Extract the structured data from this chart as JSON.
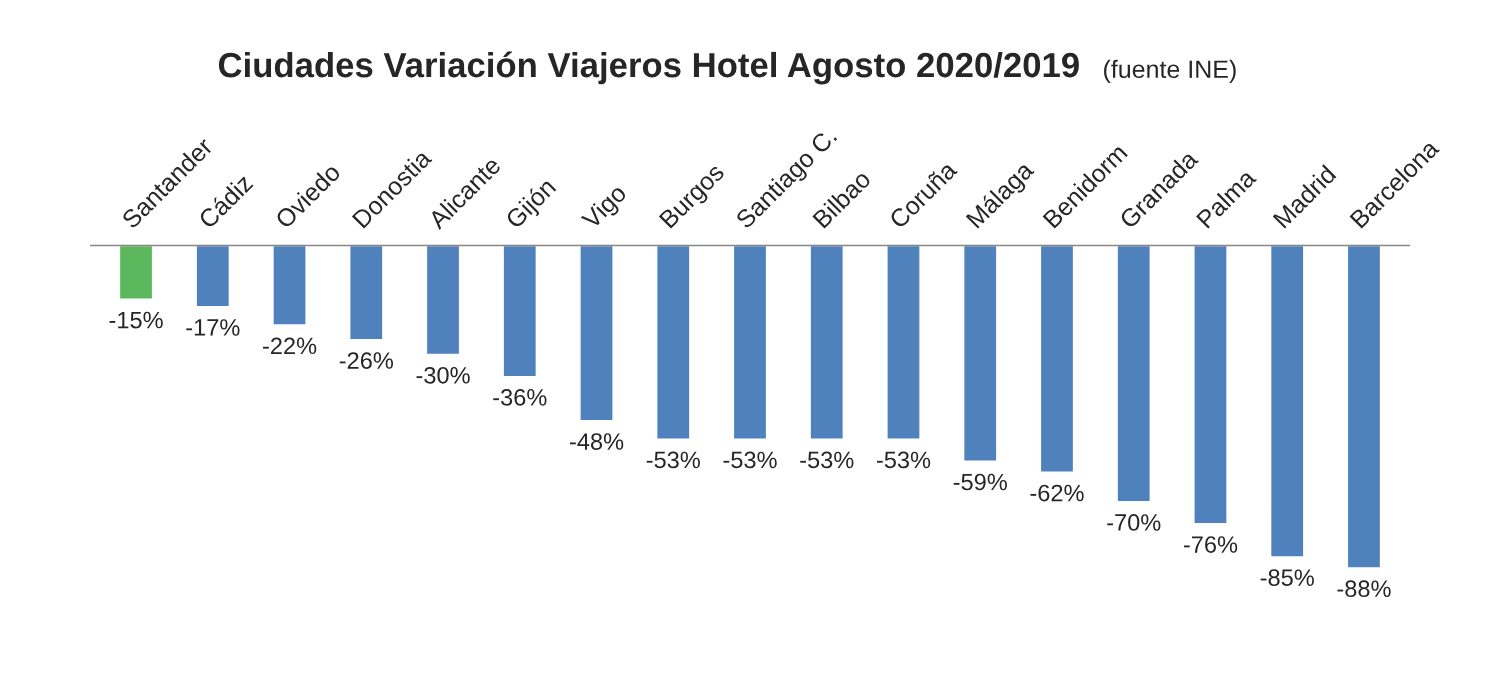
{
  "chart_data": {
    "type": "bar",
    "title": "Ciudades Variación Viajeros Hotel Agosto 2020/2019",
    "subtitle": "(fuente INE)",
    "categories": [
      "Santander",
      "Cádiz",
      "Oviedo",
      "Donostia",
      "Alicante",
      "Gijón",
      "Vigo",
      "Burgos",
      "Santiago C.",
      "Bilbao",
      "Coruña",
      "Málaga",
      "Benidorm",
      "Granada",
      "Palma",
      "Madrid",
      "Barcelona"
    ],
    "values": [
      -15,
      -17,
      -22,
      -26,
      -30,
      -36,
      -48,
      -53,
      -53,
      -53,
      -53,
      -59,
      -62,
      -70,
      -76,
      -85,
      -88
    ],
    "value_labels": [
      "-15%",
      "-17%",
      "-22%",
      "-26%",
      "-30%",
      "-36%",
      "-48%",
      "-53%",
      "-53%",
      "-53%",
      "-53%",
      "-59%",
      "-62%",
      "-70%",
      "-76%",
      "-85%",
      "-88%"
    ],
    "colors": [
      "#5cb85c",
      "#4f81bd",
      "#4f81bd",
      "#4f81bd",
      "#4f81bd",
      "#4f81bd",
      "#4f81bd",
      "#4f81bd",
      "#4f81bd",
      "#4f81bd",
      "#4f81bd",
      "#4f81bd",
      "#4f81bd",
      "#4f81bd",
      "#4f81bd",
      "#4f81bd",
      "#4f81bd"
    ],
    "grid": false,
    "legend": false
  }
}
